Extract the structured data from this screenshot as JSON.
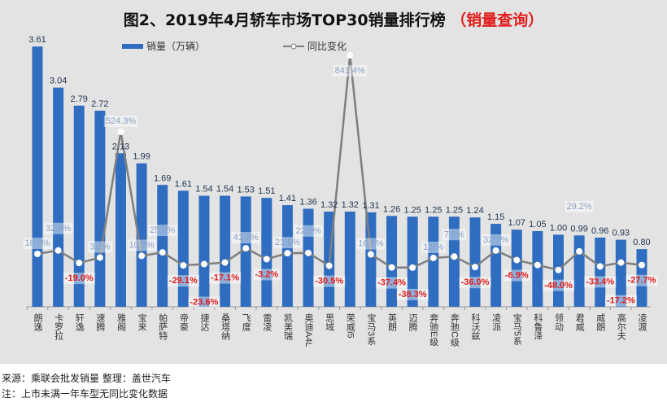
{
  "title": "图2、2019年4月轿车市场TOP30销量排行榜",
  "title_suffix": "（销量查询）",
  "footer": {
    "source": "来源：乘联会批发销量  整理：盖世汽车",
    "note": "注：上市未满一年车型无同比变化数据"
  },
  "colors": {
    "bar": "#2f6dc0",
    "line": "#7f7f7f",
    "negative_label": "#e21c1c",
    "positive_label": "#8aa2c4",
    "background": "#e3e3e3"
  },
  "chart_data": {
    "type": "bar+line",
    "title": "图2、2019年4月轿车市场TOP30销量排行榜",
    "legend_position": "top",
    "categories": [
      "朗逸",
      "卡罗拉",
      "轩逸",
      "速腾",
      "雅阁",
      "宝来",
      "帕萨特",
      "帝豪",
      "捷达",
      "桑塔纳",
      "飞度",
      "雷凌",
      "凯美瑞",
      "奥迪A4L",
      "思域",
      "荣威i5",
      "宝马3系",
      "英朗",
      "迈腾",
      "奔驰E级",
      "奔驰C级",
      "科沃兹",
      "凌派",
      "宝马5系",
      "科鲁泽",
      "领动",
      "君威",
      "威朗",
      "高尔夫",
      "凌渡"
    ],
    "series": [
      {
        "name": "销量（万辆）",
        "type": "bar",
        "values": [
          3.61,
          3.04,
          2.79,
          2.72,
          2.13,
          1.99,
          1.69,
          1.61,
          1.54,
          1.54,
          1.53,
          1.51,
          1.41,
          1.36,
          1.32,
          1.32,
          1.31,
          1.26,
          1.25,
          1.25,
          1.25,
          1.24,
          1.15,
          1.07,
          1.05,
          1.0,
          0.99,
          0.96,
          0.93,
          0.8
        ]
      },
      {
        "name": "同比变化",
        "type": "line",
        "unit": "%",
        "values": [
          18.6,
          32.9,
          -19.0,
          3.3,
          524.3,
          10.3,
          25.0,
          -29.1,
          -23.6,
          -17.1,
          41.9,
          -3.2,
          21.5,
          22.6,
          -30.5,
          841.4,
          16.6,
          -37.4,
          -38.3,
          1.9,
          7.6,
          -36.0,
          32.7,
          -6.9,
          null,
          -48.0,
          29.2,
          -33.4,
          -17.2,
          -27.7
        ]
      }
    ]
  }
}
